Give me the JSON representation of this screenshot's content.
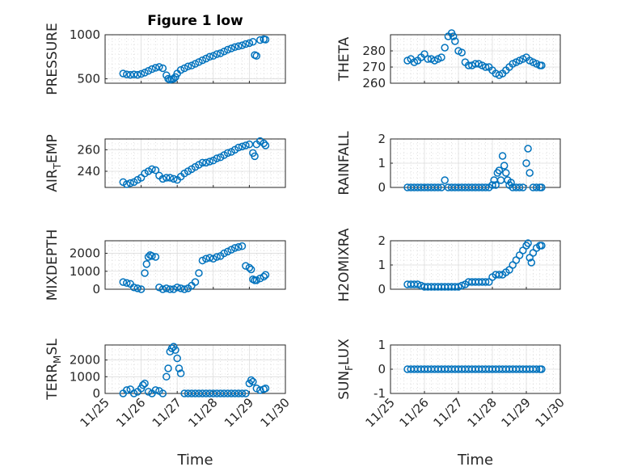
{
  "figure": {
    "title": "Figure 1 low",
    "marker_color": "#0072BD",
    "x_tick_labels": [
      "11/25",
      "11/26",
      "11/27",
      "11/28",
      "11/29",
      "11/30"
    ],
    "x_label": "Time"
  },
  "chart_data": [
    {
      "type": "scatter",
      "title": "Figure 1 low",
      "ylabel": "PRESSURE",
      "xlim": [
        25,
        30
      ],
      "ylim": [
        450,
        1000
      ],
      "yticks": [
        500,
        1000
      ],
      "x": [
        25.5,
        25.6,
        25.7,
        25.8,
        25.9,
        26.0,
        26.1,
        26.2,
        26.3,
        26.4,
        26.5,
        26.6,
        26.7,
        26.75,
        26.8,
        26.85,
        26.9,
        26.95,
        27.0,
        27.1,
        27.2,
        27.3,
        27.4,
        27.5,
        27.6,
        27.7,
        27.8,
        27.9,
        28.0,
        28.1,
        28.2,
        28.3,
        28.4,
        28.5,
        28.6,
        28.7,
        28.8,
        28.9,
        29.0,
        29.1,
        29.15,
        29.2,
        29.3,
        29.4,
        29.45
      ],
      "y": [
        560,
        550,
        545,
        550,
        545,
        555,
        570,
        590,
        610,
        625,
        635,
        620,
        540,
        500,
        490,
        495,
        500,
        520,
        560,
        600,
        620,
        640,
        650,
        670,
        690,
        710,
        730,
        750,
        760,
        780,
        790,
        810,
        830,
        845,
        860,
        870,
        880,
        895,
        905,
        920,
        770,
        760,
        940,
        950,
        945
      ]
    },
    {
      "type": "scatter",
      "ylabel": "THETA",
      "xlim": [
        25,
        30
      ],
      "ylim": [
        260,
        290
      ],
      "yticks": [
        260,
        270,
        280
      ],
      "x": [
        25.5,
        25.6,
        25.7,
        25.8,
        25.9,
        26.0,
        26.1,
        26.2,
        26.3,
        26.4,
        26.5,
        26.6,
        26.7,
        26.8,
        26.85,
        26.9,
        27.0,
        27.1,
        27.2,
        27.3,
        27.4,
        27.5,
        27.6,
        27.7,
        27.8,
        27.9,
        28.0,
        28.1,
        28.2,
        28.3,
        28.4,
        28.5,
        28.6,
        28.7,
        28.8,
        28.9,
        29.0,
        29.1,
        29.2,
        29.3,
        29.4,
        29.45
      ],
      "y": [
        274,
        275,
        273,
        274,
        276,
        278,
        275,
        275,
        274,
        275,
        276,
        282,
        289,
        291,
        289,
        286,
        280,
        279,
        273,
        271,
        271,
        272,
        272,
        271,
        270,
        270,
        268,
        266,
        265,
        266,
        268,
        270,
        272,
        273,
        274,
        275,
        276,
        274,
        273,
        272,
        271,
        271
      ]
    },
    {
      "type": "scatter",
      "ylabel": "AIR_TEMP",
      "xlim": [
        25,
        30
      ],
      "ylim": [
        225,
        270
      ],
      "yticks": [
        240,
        260
      ],
      "x": [
        25.5,
        25.6,
        25.7,
        25.8,
        25.9,
        26.0,
        26.1,
        26.2,
        26.3,
        26.4,
        26.5,
        26.6,
        26.7,
        26.8,
        26.9,
        27.0,
        27.1,
        27.2,
        27.3,
        27.4,
        27.5,
        27.6,
        27.7,
        27.8,
        27.9,
        28.0,
        28.1,
        28.2,
        28.3,
        28.4,
        28.5,
        28.6,
        28.7,
        28.8,
        28.9,
        29.0,
        29.1,
        29.15,
        29.2,
        29.3,
        29.4,
        29.45
      ],
      "y": [
        230,
        228,
        229,
        230,
        232,
        234,
        238,
        240,
        242,
        241,
        236,
        233,
        234,
        234,
        233,
        232,
        235,
        238,
        240,
        242,
        244,
        246,
        248,
        248,
        249,
        250,
        252,
        253,
        255,
        257,
        258,
        260,
        262,
        263,
        264,
        265,
        257,
        254,
        265,
        268,
        266,
        264
      ]
    },
    {
      "type": "scatter",
      "ylabel": "RAINFALL",
      "xlim": [
        25,
        30
      ],
      "ylim": [
        0,
        2
      ],
      "yticks": [
        0,
        1,
        2
      ],
      "x": [
        25.5,
        25.6,
        25.7,
        25.8,
        25.9,
        26.0,
        26.1,
        26.2,
        26.3,
        26.4,
        26.5,
        26.6,
        26.7,
        26.8,
        26.9,
        27.0,
        27.1,
        27.2,
        27.3,
        27.4,
        27.5,
        27.6,
        27.7,
        27.8,
        27.9,
        28.0,
        28.05,
        28.1,
        28.15,
        28.2,
        28.25,
        28.3,
        28.35,
        28.4,
        28.45,
        28.5,
        28.55,
        28.6,
        28.7,
        28.8,
        28.9,
        29.0,
        29.05,
        29.1,
        29.2,
        29.3,
        29.4,
        29.45
      ],
      "y": [
        0,
        0,
        0,
        0,
        0,
        0,
        0,
        0,
        0,
        0,
        0,
        0.3,
        0,
        0,
        0,
        0,
        0,
        0,
        0,
        0,
        0,
        0,
        0,
        0,
        0,
        0.1,
        0.3,
        0.1,
        0.6,
        0.7,
        0.3,
        1.3,
        0.9,
        0.6,
        0.3,
        0.1,
        0.2,
        0,
        0,
        0,
        0,
        1.0,
        1.6,
        0.6,
        0,
        0,
        0,
        0
      ]
    },
    {
      "type": "scatter",
      "ylabel": "MIXDEPTH",
      "xlim": [
        25,
        30
      ],
      "ylim": [
        0,
        2700
      ],
      "yticks": [
        0,
        1000,
        2000
      ],
      "x": [
        25.5,
        25.6,
        25.7,
        25.8,
        25.9,
        26.0,
        26.1,
        26.15,
        26.2,
        26.25,
        26.3,
        26.4,
        26.5,
        26.6,
        26.7,
        26.8,
        26.9,
        27.0,
        27.1,
        27.2,
        27.3,
        27.4,
        27.5,
        27.6,
        27.7,
        27.8,
        27.9,
        28.0,
        28.1,
        28.2,
        28.3,
        28.4,
        28.5,
        28.6,
        28.7,
        28.8,
        28.9,
        29.0,
        29.05,
        29.1,
        29.15,
        29.2,
        29.3,
        29.4,
        29.45
      ],
      "y": [
        400,
        350,
        300,
        100,
        50,
        0,
        900,
        1400,
        1800,
        1900,
        1850,
        1800,
        100,
        0,
        50,
        0,
        0,
        100,
        50,
        0,
        50,
        200,
        400,
        900,
        1600,
        1700,
        1750,
        1700,
        1800,
        1850,
        2000,
        2100,
        2200,
        2300,
        2350,
        2400,
        1300,
        1200,
        1100,
        550,
        500,
        500,
        600,
        700,
        800
      ]
    },
    {
      "type": "scatter",
      "ylabel": "H2OMIXRA",
      "xlim": [
        25,
        30
      ],
      "ylim": [
        0,
        2
      ],
      "yticks": [
        0,
        1,
        2
      ],
      "x": [
        25.5,
        25.6,
        25.7,
        25.8,
        25.9,
        26.0,
        26.1,
        26.2,
        26.3,
        26.4,
        26.5,
        26.6,
        26.7,
        26.8,
        26.9,
        27.0,
        27.1,
        27.2,
        27.3,
        27.4,
        27.5,
        27.6,
        27.7,
        27.8,
        27.9,
        28.0,
        28.1,
        28.2,
        28.3,
        28.4,
        28.5,
        28.6,
        28.7,
        28.8,
        28.9,
        29.0,
        29.05,
        29.1,
        29.15,
        29.2,
        29.3,
        29.4,
        29.45
      ],
      "y": [
        0.2,
        0.2,
        0.2,
        0.2,
        0.15,
        0.1,
        0.1,
        0.1,
        0.1,
        0.1,
        0.1,
        0.1,
        0.1,
        0.1,
        0.1,
        0.1,
        0.15,
        0.2,
        0.3,
        0.3,
        0.3,
        0.3,
        0.3,
        0.3,
        0.3,
        0.5,
        0.6,
        0.6,
        0.6,
        0.7,
        0.8,
        1.0,
        1.2,
        1.4,
        1.6,
        1.8,
        1.9,
        1.3,
        1.1,
        1.5,
        1.7,
        1.8,
        1.8
      ]
    },
    {
      "type": "scatter",
      "ylabel": "TERR_MSL",
      "xlim": [
        25,
        30
      ],
      "ylim": [
        0,
        2900
      ],
      "yticks": [
        0,
        1000,
        2000
      ],
      "x": [
        25.5,
        25.6,
        25.7,
        25.8,
        25.9,
        26.0,
        26.05,
        26.1,
        26.2,
        26.3,
        26.4,
        26.5,
        26.6,
        26.7,
        26.75,
        26.8,
        26.85,
        26.9,
        26.95,
        27.0,
        27.05,
        27.1,
        27.2,
        27.3,
        27.4,
        27.5,
        27.6,
        27.7,
        27.8,
        27.9,
        28.0,
        28.1,
        28.2,
        28.3,
        28.4,
        28.5,
        28.6,
        28.7,
        28.8,
        28.9,
        29.0,
        29.05,
        29.1,
        29.2,
        29.3,
        29.4,
        29.45
      ],
      "y": [
        0,
        200,
        250,
        0,
        100,
        300,
        500,
        600,
        100,
        0,
        200,
        150,
        0,
        1000,
        1500,
        2500,
        2700,
        2800,
        2600,
        2100,
        1500,
        1200,
        0,
        0,
        0,
        0,
        0,
        0,
        0,
        0,
        0,
        0,
        0,
        0,
        0,
        0,
        0,
        0,
        0,
        0,
        600,
        800,
        700,
        300,
        200,
        250,
        300
      ]
    },
    {
      "type": "scatter",
      "ylabel": "SUN_FLUX",
      "xlim": [
        25,
        30
      ],
      "ylim": [
        -1,
        1
      ],
      "yticks": [
        -1,
        0,
        1
      ],
      "x": [
        25.5,
        25.6,
        25.7,
        25.8,
        25.9,
        26.0,
        26.1,
        26.2,
        26.3,
        26.4,
        26.5,
        26.6,
        26.7,
        26.8,
        26.9,
        27.0,
        27.1,
        27.2,
        27.3,
        27.4,
        27.5,
        27.6,
        27.7,
        27.8,
        27.9,
        28.0,
        28.1,
        28.2,
        28.3,
        28.4,
        28.5,
        28.6,
        28.7,
        28.8,
        28.9,
        29.0,
        29.1,
        29.2,
        29.3,
        29.4,
        29.45
      ],
      "y": [
        0,
        0,
        0,
        0,
        0,
        0,
        0,
        0,
        0,
        0,
        0,
        0,
        0,
        0,
        0,
        0,
        0,
        0,
        0,
        0,
        0,
        0,
        0,
        0,
        0,
        0,
        0,
        0,
        0,
        0,
        0,
        0,
        0,
        0,
        0,
        0,
        0,
        0,
        0,
        0,
        0
      ]
    }
  ]
}
